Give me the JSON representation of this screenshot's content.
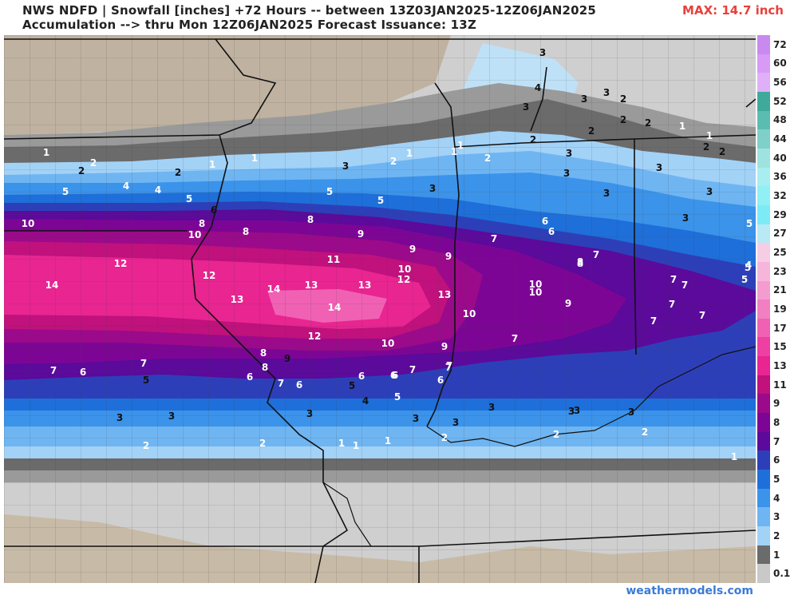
{
  "header": {
    "line1": "NWS NDFD | Snowfall [inches] +72 Hours -- between 13Z03JAN2025-12Z06JAN2025",
    "line2": "Accumulation --> thru Mon 12Z06JAN2025   Forecast Issuance: 13Z",
    "max": "MAX: 14.7 inch"
  },
  "footer": {
    "credit": "weathermodels.com"
  },
  "legend": {
    "levels": [
      {
        "label": "72",
        "color": "#c98af0"
      },
      {
        "label": "60",
        "color": "#d79af5"
      },
      {
        "label": "56",
        "color": "#dfb0f7"
      },
      {
        "label": "52",
        "color": "#3fa99c"
      },
      {
        "label": "48",
        "color": "#5bbcb2"
      },
      {
        "label": "44",
        "color": "#7fd0c8"
      },
      {
        "label": "40",
        "color": "#9fe3e0"
      },
      {
        "label": "36",
        "color": "#a8eef0"
      },
      {
        "label": "32",
        "color": "#8ff0f5"
      },
      {
        "label": "29",
        "color": "#7cebf5"
      },
      {
        "label": "27",
        "color": "#b8e9f5"
      },
      {
        "label": "25",
        "color": "#f7cde6"
      },
      {
        "label": "23",
        "color": "#f6b6dc"
      },
      {
        "label": "21",
        "color": "#f49bcf"
      },
      {
        "label": "19",
        "color": "#f27fc2"
      },
      {
        "label": "17",
        "color": "#f061b4"
      },
      {
        "label": "15",
        "color": "#ee3fa3"
      },
      {
        "label": "13",
        "color": "#e82590"
      },
      {
        "label": "11",
        "color": "#c0117d"
      },
      {
        "label": "9",
        "color": "#9b0a8a"
      },
      {
        "label": "8",
        "color": "#7d0595"
      },
      {
        "label": "7",
        "color": "#5b0a9b"
      },
      {
        "label": "6",
        "color": "#2d3fb8"
      },
      {
        "label": "5",
        "color": "#1e6fd9"
      },
      {
        "label": "4",
        "color": "#3b93ea"
      },
      {
        "label": "3",
        "color": "#6fb5f2"
      },
      {
        "label": "2",
        "color": "#a3d2f7"
      },
      {
        "label": "1",
        "color": "#6b6b6b"
      },
      {
        "label": "0.1",
        "color": "#c9c9c9"
      }
    ]
  },
  "map": {
    "value_labels": [
      {
        "t": "1",
        "c": "w"
      },
      {
        "t": "2",
        "c": "k"
      },
      {
        "t": "2",
        "c": "w"
      },
      {
        "t": "2",
        "c": "k"
      },
      {
        "t": "1",
        "c": "w"
      },
      {
        "t": "1",
        "c": "w"
      },
      {
        "t": "3",
        "c": "k"
      },
      {
        "t": "2",
        "c": "w"
      },
      {
        "t": "1",
        "c": "w"
      },
      {
        "t": "1",
        "c": "w"
      },
      {
        "t": "1",
        "c": "w"
      },
      {
        "t": "2",
        "c": "w"
      },
      {
        "t": "3",
        "c": "k"
      },
      {
        "t": "4",
        "c": "k"
      },
      {
        "t": "3",
        "c": "k"
      },
      {
        "t": "3",
        "c": "k"
      },
      {
        "t": "3",
        "c": "k"
      },
      {
        "t": "2",
        "c": "k"
      },
      {
        "t": "2",
        "c": "k"
      },
      {
        "t": "2",
        "c": "k"
      },
      {
        "t": "1",
        "c": "w"
      },
      {
        "t": "2",
        "c": "k"
      },
      {
        "t": "3",
        "c": "k"
      },
      {
        "t": "3",
        "c": "k"
      },
      {
        "t": "3",
        "c": "k"
      },
      {
        "t": "2",
        "c": "k"
      },
      {
        "t": "1",
        "c": "w"
      },
      {
        "t": "2",
        "c": "k"
      },
      {
        "t": "2",
        "c": "k"
      },
      {
        "t": "5",
        "c": "w"
      },
      {
        "t": "4",
        "c": "w"
      },
      {
        "t": "4",
        "c": "w"
      },
      {
        "t": "5",
        "c": "w"
      },
      {
        "t": "6",
        "c": "k"
      },
      {
        "t": "5",
        "c": "w"
      },
      {
        "t": "5",
        "c": "w"
      },
      {
        "t": "3",
        "c": "k"
      },
      {
        "t": "3",
        "c": "k"
      },
      {
        "t": "3",
        "c": "k"
      },
      {
        "t": "3",
        "c": "k"
      },
      {
        "t": "5",
        "c": "w"
      },
      {
        "t": "5",
        "c": "w"
      },
      {
        "t": "4",
        "c": "w"
      },
      {
        "t": "5",
        "c": "w"
      },
      {
        "t": "10",
        "c": "w"
      },
      {
        "t": "8",
        "c": "w"
      },
      {
        "t": "10",
        "c": "w"
      },
      {
        "t": "8",
        "c": "w"
      },
      {
        "t": "8",
        "c": "w"
      },
      {
        "t": "9",
        "c": "w"
      },
      {
        "t": "9",
        "c": "w"
      },
      {
        "t": "9",
        "c": "w"
      },
      {
        "t": "6",
        "c": "w"
      },
      {
        "t": "6",
        "c": "w"
      },
      {
        "t": "7",
        "c": "w"
      },
      {
        "t": "7",
        "c": "w"
      },
      {
        "t": "8",
        "c": "w"
      },
      {
        "t": "12",
        "c": "w"
      },
      {
        "t": "12",
        "c": "w"
      },
      {
        "t": "11",
        "c": "w"
      },
      {
        "t": "10",
        "c": "w"
      },
      {
        "t": "14",
        "c": "w"
      },
      {
        "t": "13",
        "c": "w"
      },
      {
        "t": "14",
        "c": "w"
      },
      {
        "t": "13",
        "c": "w"
      },
      {
        "t": "13",
        "c": "w"
      },
      {
        "t": "12",
        "c": "w"
      },
      {
        "t": "10",
        "c": "w"
      },
      {
        "t": "10",
        "c": "w"
      },
      {
        "t": "9",
        "c": "w"
      },
      {
        "t": "7",
        "c": "w"
      },
      {
        "t": "7",
        "c": "w"
      },
      {
        "t": "14",
        "c": "w"
      },
      {
        "t": "13",
        "c": "w"
      },
      {
        "t": "10",
        "c": "w"
      },
      {
        "t": "7",
        "c": "w"
      },
      {
        "t": "7",
        "c": "w"
      },
      {
        "t": "12",
        "c": "w"
      },
      {
        "t": "10",
        "c": "w"
      },
      {
        "t": "9",
        "c": "w"
      },
      {
        "t": "7",
        "c": "w"
      },
      {
        "t": "8",
        "c": "w"
      },
      {
        "t": "7",
        "c": "w"
      },
      {
        "t": "8",
        "c": "w"
      },
      {
        "t": "8",
        "c": "w"
      },
      {
        "t": "9",
        "c": "k"
      },
      {
        "t": "7",
        "c": "w"
      },
      {
        "t": "6",
        "c": "w"
      },
      {
        "t": "7",
        "c": "w"
      },
      {
        "t": "5",
        "c": "k"
      },
      {
        "t": "6",
        "c": "w"
      },
      {
        "t": "7",
        "c": "w"
      },
      {
        "t": "6",
        "c": "w"
      },
      {
        "t": "5",
        "c": "k"
      },
      {
        "t": "6",
        "c": "w"
      },
      {
        "t": "6",
        "c": "w"
      },
      {
        "t": "7",
        "c": "w"
      },
      {
        "t": "7",
        "c": "w"
      },
      {
        "t": "6",
        "c": "w"
      },
      {
        "t": "7",
        "c": "w"
      },
      {
        "t": "6",
        "c": "w"
      },
      {
        "t": "4",
        "c": "k"
      },
      {
        "t": "5",
        "c": "w"
      },
      {
        "t": "3",
        "c": "k"
      },
      {
        "t": "3",
        "c": "k"
      },
      {
        "t": "3",
        "c": "k"
      },
      {
        "t": "3",
        "c": "k"
      },
      {
        "t": "3",
        "c": "k"
      },
      {
        "t": "3",
        "c": "k"
      },
      {
        "t": "3",
        "c": "k"
      },
      {
        "t": "3",
        "c": "k"
      },
      {
        "t": "3",
        "c": "k"
      },
      {
        "t": "2",
        "c": "w"
      },
      {
        "t": "2",
        "c": "w"
      },
      {
        "t": "2",
        "c": "w"
      },
      {
        "t": "1",
        "c": "w"
      },
      {
        "t": "1",
        "c": "w"
      },
      {
        "t": "1",
        "c": "w"
      },
      {
        "t": "2",
        "c": "w"
      },
      {
        "t": "2",
        "c": "w"
      },
      {
        "t": "1",
        "c": "w"
      }
    ]
  }
}
